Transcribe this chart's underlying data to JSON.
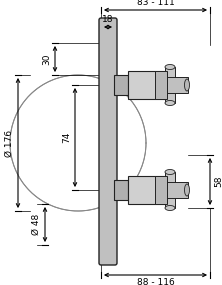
{
  "bg_color": "#ffffff",
  "line_color": "#000000",
  "product_outline": "#222222",
  "top_dim_label": "83 - 111",
  "depth_label": "18",
  "thirty_label": "30",
  "phi176_label": "Ø 176",
  "seventy4_label": "74",
  "phi48_label": "Ø 48",
  "fifty8_label": "58",
  "bottom_dim_label": "88 - 116"
}
